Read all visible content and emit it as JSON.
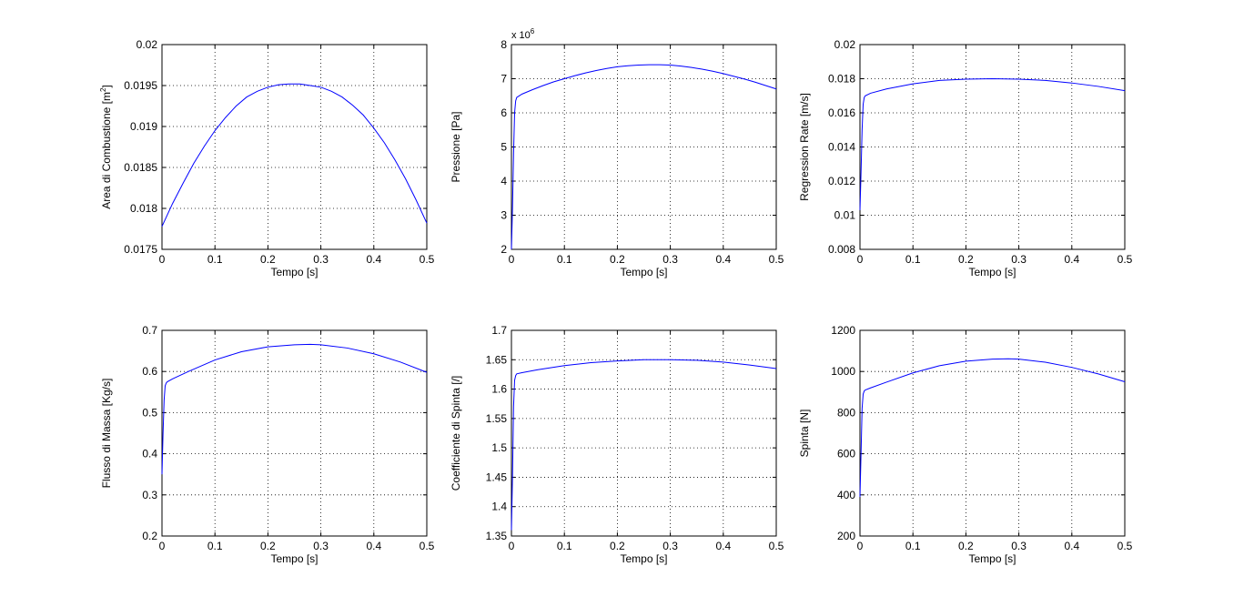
{
  "chart_data": [
    {
      "type": "line",
      "xlabel": "Tempo [s]",
      "ylabel": "Area di Combustione [m",
      "ylabel_sup": "2",
      "ylabel_end": "]",
      "xlim": [
        0,
        0.5
      ],
      "ylim": [
        0.0175,
        0.02
      ],
      "xticks": [
        0,
        0.1,
        0.2,
        0.3,
        0.4,
        0.5
      ],
      "xtick_labels": [
        "0",
        "0.1",
        "0.2",
        "0.3",
        "0.4",
        "0.5"
      ],
      "yticks": [
        0.0175,
        0.018,
        0.0185,
        0.019,
        0.0195,
        0.02
      ],
      "ytick_labels": [
        "0.0175",
        "0.018",
        "0.0185",
        "0.019",
        "0.0195",
        "0.02"
      ],
      "grid": true,
      "color": "#0000ff",
      "series": [
        {
          "x": [
            0,
            0.02,
            0.04,
            0.06,
            0.08,
            0.1,
            0.12,
            0.14,
            0.16,
            0.18,
            0.2,
            0.22,
            0.24,
            0.26,
            0.27,
            0.28,
            0.3,
            0.32,
            0.34,
            0.36,
            0.38,
            0.4,
            0.42,
            0.44,
            0.46,
            0.48,
            0.5
          ],
          "y": [
            0.01778,
            0.01806,
            0.01831,
            0.01855,
            0.01876,
            0.01895,
            0.01911,
            0.01925,
            0.01936,
            0.01943,
            0.01948,
            0.01951,
            0.01952,
            0.01952,
            0.01951,
            0.0195,
            0.01948,
            0.01943,
            0.01936,
            0.01926,
            0.01914,
            0.01898,
            0.0188,
            0.01859,
            0.01836,
            0.0181,
            0.01782
          ]
        }
      ]
    },
    {
      "type": "line",
      "xlabel": "Tempo [s]",
      "ylabel": "Pressione [Pa]",
      "exponent_base": "x 10",
      "exponent_power": "6",
      "xlim": [
        0,
        0.5
      ],
      "ylim": [
        2,
        8
      ],
      "xticks": [
        0,
        0.1,
        0.2,
        0.3,
        0.4,
        0.5
      ],
      "xtick_labels": [
        "0",
        "0.1",
        "0.2",
        "0.3",
        "0.4",
        "0.5"
      ],
      "yticks": [
        2,
        3,
        4,
        5,
        6,
        7,
        8
      ],
      "ytick_labels": [
        "2",
        "3",
        "4",
        "5",
        "6",
        "7",
        "8"
      ],
      "grid": true,
      "color": "#0000ff",
      "series": [
        {
          "x": [
            0,
            0.002,
            0.004,
            0.006,
            0.008,
            0.01,
            0.02,
            0.04,
            0.06,
            0.08,
            0.1,
            0.12,
            0.14,
            0.16,
            0.18,
            0.2,
            0.22,
            0.24,
            0.26,
            0.28,
            0.3,
            0.32,
            0.34,
            0.36,
            0.38,
            0.4,
            0.42,
            0.44,
            0.46,
            0.48,
            0.5
          ],
          "y": [
            2.0,
            3.2,
            4.8,
            6.0,
            6.35,
            6.45,
            6.55,
            6.68,
            6.8,
            6.91,
            7.0,
            7.09,
            7.17,
            7.24,
            7.3,
            7.35,
            7.38,
            7.4,
            7.41,
            7.41,
            7.4,
            7.37,
            7.33,
            7.28,
            7.22,
            7.15,
            7.07,
            6.99,
            6.9,
            6.8,
            6.7
          ]
        }
      ]
    },
    {
      "type": "line",
      "xlabel": "Tempo [s]",
      "ylabel": "Regression Rate [m/s]",
      "xlim": [
        0,
        0.5
      ],
      "ylim": [
        0.008,
        0.02
      ],
      "xticks": [
        0,
        0.1,
        0.2,
        0.3,
        0.4,
        0.5
      ],
      "xtick_labels": [
        "0",
        "0.1",
        "0.2",
        "0.3",
        "0.4",
        "0.5"
      ],
      "yticks": [
        0.008,
        0.01,
        0.012,
        0.014,
        0.016,
        0.018,
        0.02
      ],
      "ytick_labels": [
        "0.008",
        "0.01",
        "0.012",
        "0.014",
        "0.016",
        "0.018",
        "0.02"
      ],
      "grid": true,
      "color": "#0000ff",
      "series": [
        {
          "x": [
            0,
            0.002,
            0.004,
            0.006,
            0.008,
            0.01,
            0.02,
            0.05,
            0.1,
            0.15,
            0.2,
            0.25,
            0.3,
            0.35,
            0.4,
            0.45,
            0.5
          ],
          "y": [
            0.0103,
            0.0125,
            0.015,
            0.0165,
            0.0169,
            0.017,
            0.01715,
            0.0174,
            0.0177,
            0.0179,
            0.01797,
            0.018,
            0.01797,
            0.0179,
            0.01775,
            0.01755,
            0.0173
          ]
        }
      ]
    },
    {
      "type": "line",
      "xlabel": "Tempo [s]",
      "ylabel": "Flusso di Massa [Kg/s]",
      "xlim": [
        0,
        0.5
      ],
      "ylim": [
        0.2,
        0.7
      ],
      "xticks": [
        0,
        0.1,
        0.2,
        0.3,
        0.4,
        0.5
      ],
      "xtick_labels": [
        "0",
        "0.1",
        "0.2",
        "0.3",
        "0.4",
        "0.5"
      ],
      "yticks": [
        0.2,
        0.3,
        0.4,
        0.5,
        0.6,
        0.7
      ],
      "ytick_labels": [
        "0.2",
        "0.3",
        "0.4",
        "0.5",
        "0.6",
        "0.7"
      ],
      "grid": true,
      "color": "#0000ff",
      "series": [
        {
          "x": [
            0,
            0.002,
            0.004,
            0.006,
            0.008,
            0.01,
            0.02,
            0.05,
            0.1,
            0.15,
            0.2,
            0.25,
            0.28,
            0.3,
            0.35,
            0.4,
            0.45,
            0.5
          ],
          "y": [
            0.35,
            0.45,
            0.53,
            0.565,
            0.572,
            0.575,
            0.582,
            0.6,
            0.628,
            0.648,
            0.66,
            0.665,
            0.666,
            0.665,
            0.657,
            0.643,
            0.623,
            0.598
          ]
        }
      ]
    },
    {
      "type": "line",
      "xlabel": "Tempo [s]",
      "ylabel": "Coefficiente di Spinta [/]",
      "xlim": [
        0,
        0.5
      ],
      "ylim": [
        1.35,
        1.7
      ],
      "xticks": [
        0,
        0.1,
        0.2,
        0.3,
        0.4,
        0.5
      ],
      "xtick_labels": [
        "0",
        "0.1",
        "0.2",
        "0.3",
        "0.4",
        "0.5"
      ],
      "yticks": [
        1.35,
        1.4,
        1.45,
        1.5,
        1.55,
        1.6,
        1.65,
        1.7
      ],
      "ytick_labels": [
        "1.35",
        "1.4",
        "1.45",
        "1.5",
        "1.55",
        "1.6",
        "1.65",
        "1.7"
      ],
      "grid": true,
      "color": "#0000ff",
      "series": [
        {
          "x": [
            0,
            0.002,
            0.004,
            0.006,
            0.008,
            0.01,
            0.02,
            0.05,
            0.1,
            0.15,
            0.2,
            0.25,
            0.3,
            0.35,
            0.4,
            0.45,
            0.5
          ],
          "y": [
            1.36,
            1.45,
            1.57,
            1.615,
            1.623,
            1.626,
            1.628,
            1.633,
            1.64,
            1.645,
            1.648,
            1.65,
            1.65,
            1.649,
            1.646,
            1.641,
            1.635
          ]
        }
      ]
    },
    {
      "type": "line",
      "xlabel": "Tempo [s]",
      "ylabel": "Spinta [N]",
      "xlim": [
        0,
        0.5
      ],
      "ylim": [
        200,
        1200
      ],
      "xticks": [
        0,
        0.1,
        0.2,
        0.3,
        0.4,
        0.5
      ],
      "xtick_labels": [
        "0",
        "0.1",
        "0.2",
        "0.3",
        "0.4",
        "0.5"
      ],
      "yticks": [
        200,
        400,
        600,
        800,
        1000,
        1200
      ],
      "ytick_labels": [
        "200",
        "400",
        "600",
        "800",
        "1000",
        "1200"
      ],
      "grid": true,
      "color": "#0000ff",
      "series": [
        {
          "x": [
            0,
            0.002,
            0.004,
            0.006,
            0.008,
            0.01,
            0.02,
            0.05,
            0.1,
            0.15,
            0.2,
            0.25,
            0.28,
            0.3,
            0.35,
            0.4,
            0.45,
            0.5
          ],
          "y": [
            390,
            600,
            820,
            890,
            905,
            910,
            920,
            948,
            993,
            1028,
            1050,
            1060,
            1062,
            1060,
            1045,
            1020,
            988,
            950
          ]
        }
      ]
    }
  ]
}
